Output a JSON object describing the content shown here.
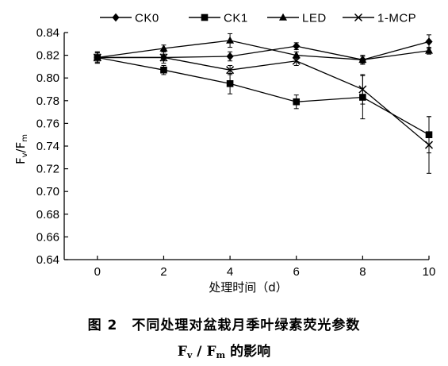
{
  "chart_data": {
    "type": "line",
    "x": [
      0,
      2,
      4,
      6,
      8,
      10
    ],
    "series": [
      {
        "name": "CK0",
        "marker": "diamond",
        "values": [
          0.818,
          0.818,
          0.819,
          0.828,
          0.816,
          0.832
        ],
        "errors": [
          0.005,
          0.003,
          0.004,
          0.003,
          0.003,
          0.006
        ]
      },
      {
        "name": "CK1",
        "marker": "square",
        "values": [
          0.818,
          0.807,
          0.795,
          0.779,
          0.783,
          0.75
        ],
        "errors": [
          0.005,
          0.004,
          0.009,
          0.006,
          0.019,
          0.016
        ]
      },
      {
        "name": "LED",
        "marker": "triangle",
        "values": [
          0.818,
          0.826,
          0.833,
          0.82,
          0.816,
          0.824
        ],
        "errors": [
          0.004,
          0.003,
          0.006,
          0.003,
          0.004,
          0.003
        ]
      },
      {
        "name": "1-MCP",
        "marker": "x",
        "values": [
          0.818,
          0.818,
          0.807,
          0.815,
          0.79,
          0.741
        ],
        "errors": [
          0.004,
          0.005,
          0.004,
          0.004,
          0.013,
          0.025
        ]
      }
    ],
    "xlabel": "处理时间（d）",
    "ylabel": "Fv/Fm",
    "ylabel_parts": {
      "base1": "F",
      "sub1": "v",
      "slash": "/",
      "base2": "F",
      "sub2": "m"
    },
    "xlim": [
      -1,
      10
    ],
    "ylim": [
      0.64,
      0.84
    ],
    "xticks": [
      0,
      2,
      4,
      6,
      8,
      10
    ],
    "yticks": [
      0.64,
      0.66,
      0.68,
      0.7,
      0.72,
      0.74,
      0.76,
      0.78,
      0.8,
      0.82,
      0.84
    ],
    "ytick_labels": [
      "0.64",
      "0.66",
      "0.68",
      "0.70",
      "0.72",
      "0.74",
      "0.76",
      "0.78",
      "0.80",
      "0.82",
      "0.84"
    ],
    "grid": false,
    "legend_position": "top",
    "color": "#000000"
  },
  "caption": {
    "line1": "图 2　不同处理对盆栽月季叶绿素荧光参数",
    "line2_F1": "F",
    "line2_sub1": "v",
    "line2_slash": " / ",
    "line2_F2": "F",
    "line2_sub2": "m",
    "line2_rest": " 的影响"
  }
}
